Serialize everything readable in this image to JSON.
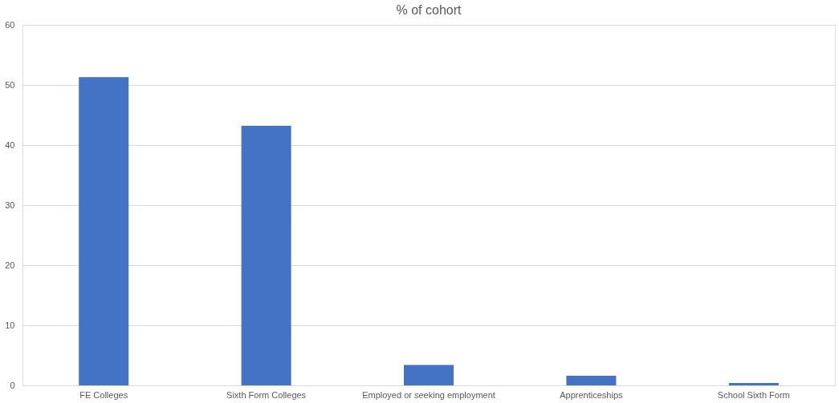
{
  "chart_data": {
    "type": "bar",
    "title": "% of cohort",
    "categories": [
      "FE Colleges",
      "Sixth Form Colleges",
      "Employed or seeking employment",
      "Apprenticeships",
      "School Sixth Form"
    ],
    "values": [
      51.3,
      43.2,
      3.4,
      1.6,
      0.4
    ],
    "color": "#4472c4",
    "ylim": [
      0,
      60
    ],
    "yticks": [
      0,
      10,
      20,
      30,
      40,
      50,
      60
    ],
    "grid": "y"
  }
}
